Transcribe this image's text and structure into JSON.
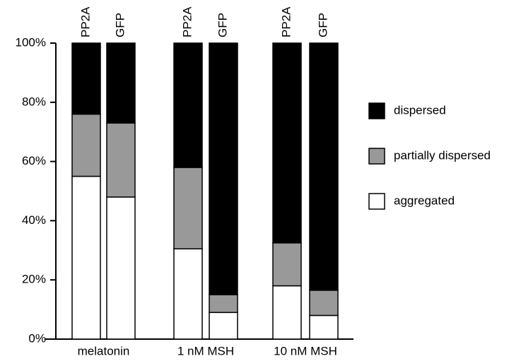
{
  "chart_data": {
    "type": "stacked-bar",
    "categories": [
      "PP2A",
      "GFP",
      "PP2A",
      "GFP",
      "PP2A",
      "GFP"
    ],
    "groups": [
      "melatonin",
      "1 nM MSH",
      "10 nM MSH"
    ],
    "series": [
      {
        "name": "aggregated",
        "color": "#ffffff",
        "values": [
          55,
          48,
          30.5,
          9,
          18,
          8
        ]
      },
      {
        "name": "partially dispersed",
        "color": "#999999",
        "values": [
          21,
          25,
          27.5,
          6,
          14.5,
          8.5
        ]
      },
      {
        "name": "dispersed",
        "color": "#000000",
        "values": [
          24,
          27,
          42,
          85,
          67.5,
          83.5
        ]
      }
    ],
    "ylim": [
      0,
      100
    ],
    "yticks": [
      {
        "value": 0,
        "label": "0%"
      },
      {
        "value": 20,
        "label": "20%"
      },
      {
        "value": 40,
        "label": "40%"
      },
      {
        "value": 60,
        "label": "60%"
      },
      {
        "value": 80,
        "label": "80%"
      },
      {
        "value": 100,
        "label": "100%"
      }
    ]
  }
}
